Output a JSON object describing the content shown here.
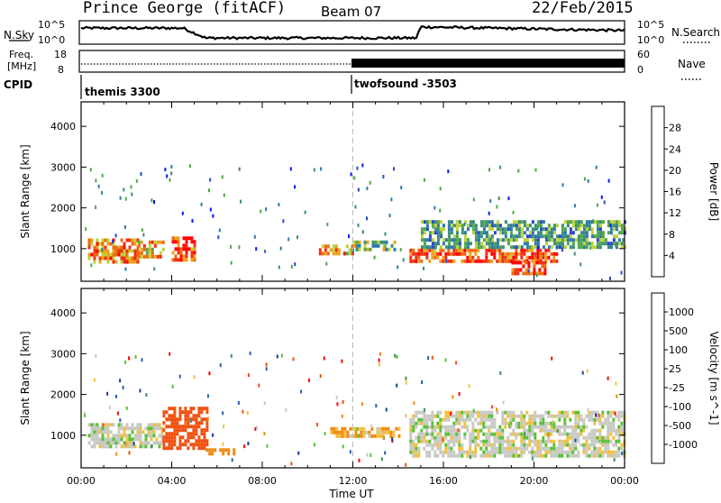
{
  "header": {
    "station": "Prince George (fitACF)",
    "beam": "Beam 07",
    "date": "22/Feb/2015"
  },
  "top_panels": {
    "nsky_label": "N.Sky",
    "nsky_ticks": [
      "10^5",
      "10^0"
    ],
    "nsearch_label": "N.Search",
    "nsearch_ticks": [
      "10^5",
      "10^0"
    ],
    "freq_label_line1": "Freq.",
    "freq_label_line2": "[MHz]",
    "freq_ticks": [
      "18",
      "8"
    ],
    "nave_label": "Nave",
    "nave_ticks": [
      "60",
      "0"
    ],
    "cpid_label": "CPID",
    "cpid_segments": [
      "themis 3300",
      "twofsound -3503"
    ]
  },
  "chart_data": [
    {
      "type": "heatmap",
      "title": "",
      "ylabel": "Slant Range [km]",
      "ylim": [
        200,
        4600
      ],
      "yticks": [
        1000,
        2000,
        3000,
        4000
      ],
      "xlim": [
        0,
        24
      ],
      "xticks": [
        "00:00",
        "04:00",
        "08:00",
        "12:00",
        "16:00",
        "20:00",
        "00:00"
      ],
      "colorbar": {
        "label": "Power [dB]",
        "range": [
          0,
          32
        ],
        "ticks": [
          "4",
          "8",
          "12",
          "16",
          "20",
          "24",
          "28"
        ],
        "colors": [
          "#0018ff",
          "#2a49c8",
          "#2f7aa8",
          "#3e8f74",
          "#4fa84a",
          "#bcd23a",
          "#f0a020",
          "#f06a10",
          "#f03010",
          "#ff0000"
        ]
      },
      "regions": [
        {
          "t": [
            0.3,
            2.5
          ],
          "r": [
            700,
            1250
          ],
          "level": 23
        },
        {
          "t": [
            2.5,
            3.6
          ],
          "r": [
            800,
            1200
          ],
          "level": 20
        },
        {
          "t": [
            4.0,
            5.0
          ],
          "r": [
            750,
            1300
          ],
          "level": 26
        },
        {
          "t": [
            14.5,
            21.0
          ],
          "r": [
            650,
            1000
          ],
          "level": 26
        },
        {
          "t": [
            19.0,
            20.5
          ],
          "r": [
            350,
            700
          ],
          "level": 28
        },
        {
          "t": [
            15.0,
            24.0
          ],
          "r": [
            1000,
            1700
          ],
          "level": 12
        },
        {
          "t": [
            10.5,
            12.0
          ],
          "r": [
            900,
            1100
          ],
          "level": 22
        },
        {
          "t": [
            12.0,
            13.8
          ],
          "r": [
            1000,
            1200
          ],
          "level": 13
        }
      ]
    },
    {
      "type": "heatmap",
      "title": "",
      "ylabel": "Slant Range [km]",
      "xlabel": "Time UT",
      "ylim": [
        200,
        4600
      ],
      "yticks": [
        1000,
        2000,
        3000,
        4000
      ],
      "xlim": [
        0,
        24
      ],
      "xticks": [
        "00:00",
        "04:00",
        "08:00",
        "12:00",
        "16:00",
        "20:00",
        "00:00"
      ],
      "colorbar": {
        "label": "Velocity [m s^-1]",
        "ticks": [
          "1000",
          "500",
          "100",
          "25",
          "-25",
          "-100",
          "-500",
          "-1000"
        ],
        "colors": [
          "#1a3a9c",
          "#2a5fb0",
          "#3e8e5a",
          "#58c035",
          "#c8c8c4",
          "#f0c040",
          "#f08a10",
          "#f05010",
          "#ff0000"
        ]
      },
      "regions": [
        {
          "t": [
            0.3,
            3.6
          ],
          "r": [
            700,
            1300
          ],
          "velocity": 0
        },
        {
          "t": [
            3.6,
            5.6
          ],
          "r": [
            650,
            1700
          ],
          "velocity": -500
        },
        {
          "t": [
            14.5,
            24.0
          ],
          "r": [
            500,
            1600
          ],
          "velocity": 0
        },
        {
          "t": [
            5.5,
            7.0
          ],
          "r": [
            560,
            680
          ],
          "velocity": -100
        },
        {
          "t": [
            11.0,
            14.0
          ],
          "r": [
            950,
            1200
          ],
          "velocity": -60
        }
      ]
    }
  ],
  "colors": {
    "ground_scatter": "#c8c8c4",
    "dashed_marker": "#bbbbbb"
  }
}
